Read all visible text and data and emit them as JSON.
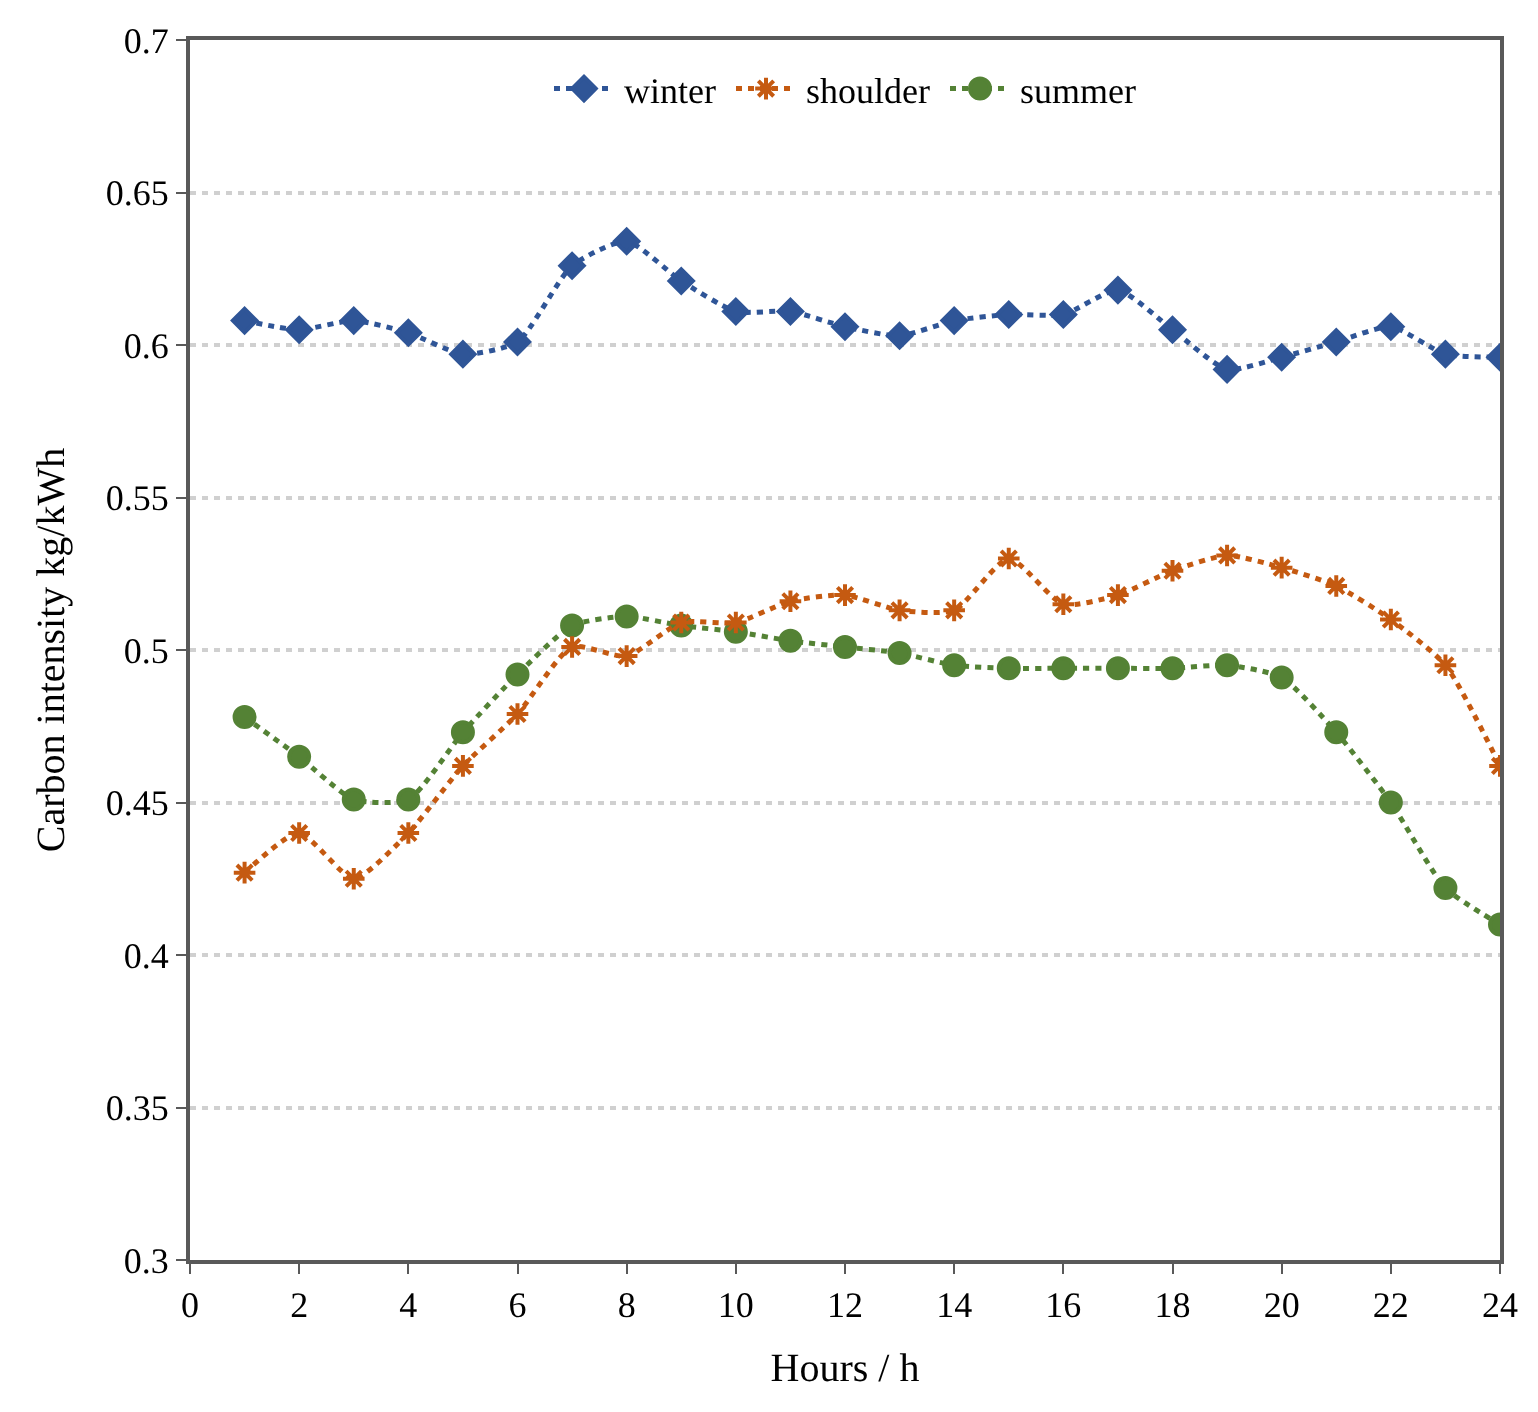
{
  "chart_data": {
    "type": "line",
    "xlabel": "Hours / h",
    "ylabel": "Carbon intensity kg/kWh",
    "x": [
      1,
      2,
      3,
      4,
      5,
      6,
      7,
      8,
      9,
      10,
      11,
      12,
      13,
      14,
      15,
      16,
      17,
      18,
      19,
      20,
      21,
      22,
      23,
      24
    ],
    "xlim": [
      0,
      24
    ],
    "xticks": [
      0,
      2,
      4,
      6,
      8,
      10,
      12,
      14,
      16,
      18,
      20,
      22,
      24
    ],
    "ylim": [
      0.3,
      0.7
    ],
    "yticks": [
      0.3,
      0.35,
      0.4,
      0.45,
      0.5,
      0.55,
      0.6,
      0.65,
      0.7
    ],
    "grid": "y",
    "legend": "top",
    "line_style": "dotted",
    "series": [
      {
        "name": "winter",
        "color": "#2f5597",
        "marker": "diamond",
        "values": [
          0.608,
          0.605,
          0.608,
          0.604,
          0.597,
          0.601,
          0.626,
          0.634,
          0.621,
          0.611,
          0.611,
          0.606,
          0.603,
          0.608,
          0.61,
          0.61,
          0.618,
          0.605,
          0.592,
          0.596,
          0.601,
          0.606,
          0.597,
          0.596
        ]
      },
      {
        "name": "shoulder",
        "color": "#c55a11",
        "marker": "cross",
        "values": [
          0.427,
          0.44,
          0.425,
          0.44,
          0.462,
          0.479,
          0.501,
          0.498,
          0.509,
          0.509,
          0.516,
          0.518,
          0.513,
          0.513,
          0.53,
          0.515,
          0.518,
          0.526,
          0.531,
          0.527,
          0.521,
          0.51,
          0.495,
          0.462
        ]
      },
      {
        "name": "summer",
        "color": "#548235",
        "marker": "circle",
        "values": [
          0.478,
          0.465,
          0.451,
          0.451,
          0.473,
          0.492,
          0.508,
          0.511,
          0.508,
          0.506,
          0.503,
          0.501,
          0.499,
          0.495,
          0.494,
          0.494,
          0.494,
          0.494,
          0.495,
          0.491,
          0.473,
          0.45,
          0.422,
          0.41
        ]
      }
    ]
  }
}
